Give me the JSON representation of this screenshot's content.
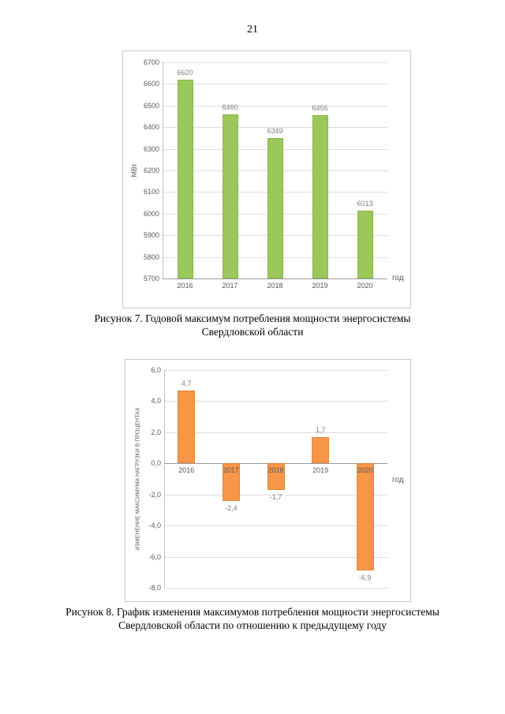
{
  "page": {
    "number": "21"
  },
  "figures": [
    {
      "caption_line1": "Рисунок 7. Годовой максимум потребления мощности энергосистемы",
      "caption_line2": "Свердловской области"
    },
    {
      "caption_line1": "Рисунок 8. График изменения максимумов потребления мощности энергосистемы",
      "caption_line2": "Свердловской области по отношению к предыдущему году"
    }
  ],
  "chart_data": [
    {
      "type": "bar",
      "title": "",
      "categories": [
        "2016",
        "2017",
        "2018",
        "2019",
        "2020"
      ],
      "values": [
        6620,
        6460,
        6349,
        6456,
        6013
      ],
      "value_labels": [
        "6620",
        "6460",
        "6349",
        "6456",
        "6013"
      ],
      "ylabel": "МВт",
      "xlabel": "год",
      "ylim": [
        5700,
        6700
      ],
      "ytick_values": [
        6700,
        6600,
        6500,
        6400,
        6300,
        6200,
        6100,
        6000,
        5900,
        5800,
        5700
      ],
      "ytick_labels": [
        "6700",
        "6600",
        "6500",
        "6400",
        "6300",
        "6200",
        "6100",
        "6000",
        "5900",
        "5800",
        "5700"
      ],
      "grid": true,
      "legend": false,
      "bar_color": "#9cc75b",
      "bar_border_color": "#8ab44c"
    },
    {
      "type": "bar",
      "title": "",
      "categories": [
        "2016",
        "2017",
        "2018",
        "2019",
        "2020"
      ],
      "values": [
        4.7,
        -2.4,
        -1.7,
        1.7,
        -6.9
      ],
      "value_labels": [
        "4,7",
        "-2,4",
        "-1,7",
        "1,7",
        "-6,9"
      ],
      "ylabel": "ИЗМЕНЕНИЕ МАКСИМУМА НАГРУЗКИ В ПРОЦЕНТАХ",
      "xlabel": "год",
      "ylim": [
        -8,
        6
      ],
      "ytick_values": [
        6,
        4,
        2,
        0,
        -2,
        -4,
        -6,
        -8
      ],
      "ytick_labels": [
        "6,0",
        "4,0",
        "2,0",
        "0,0",
        "-2,0",
        "-4,0",
        "-6,0",
        "-8,0"
      ],
      "grid": true,
      "legend": false,
      "bar_color": "#f79646",
      "bar_border_color": "#e0873a"
    }
  ]
}
